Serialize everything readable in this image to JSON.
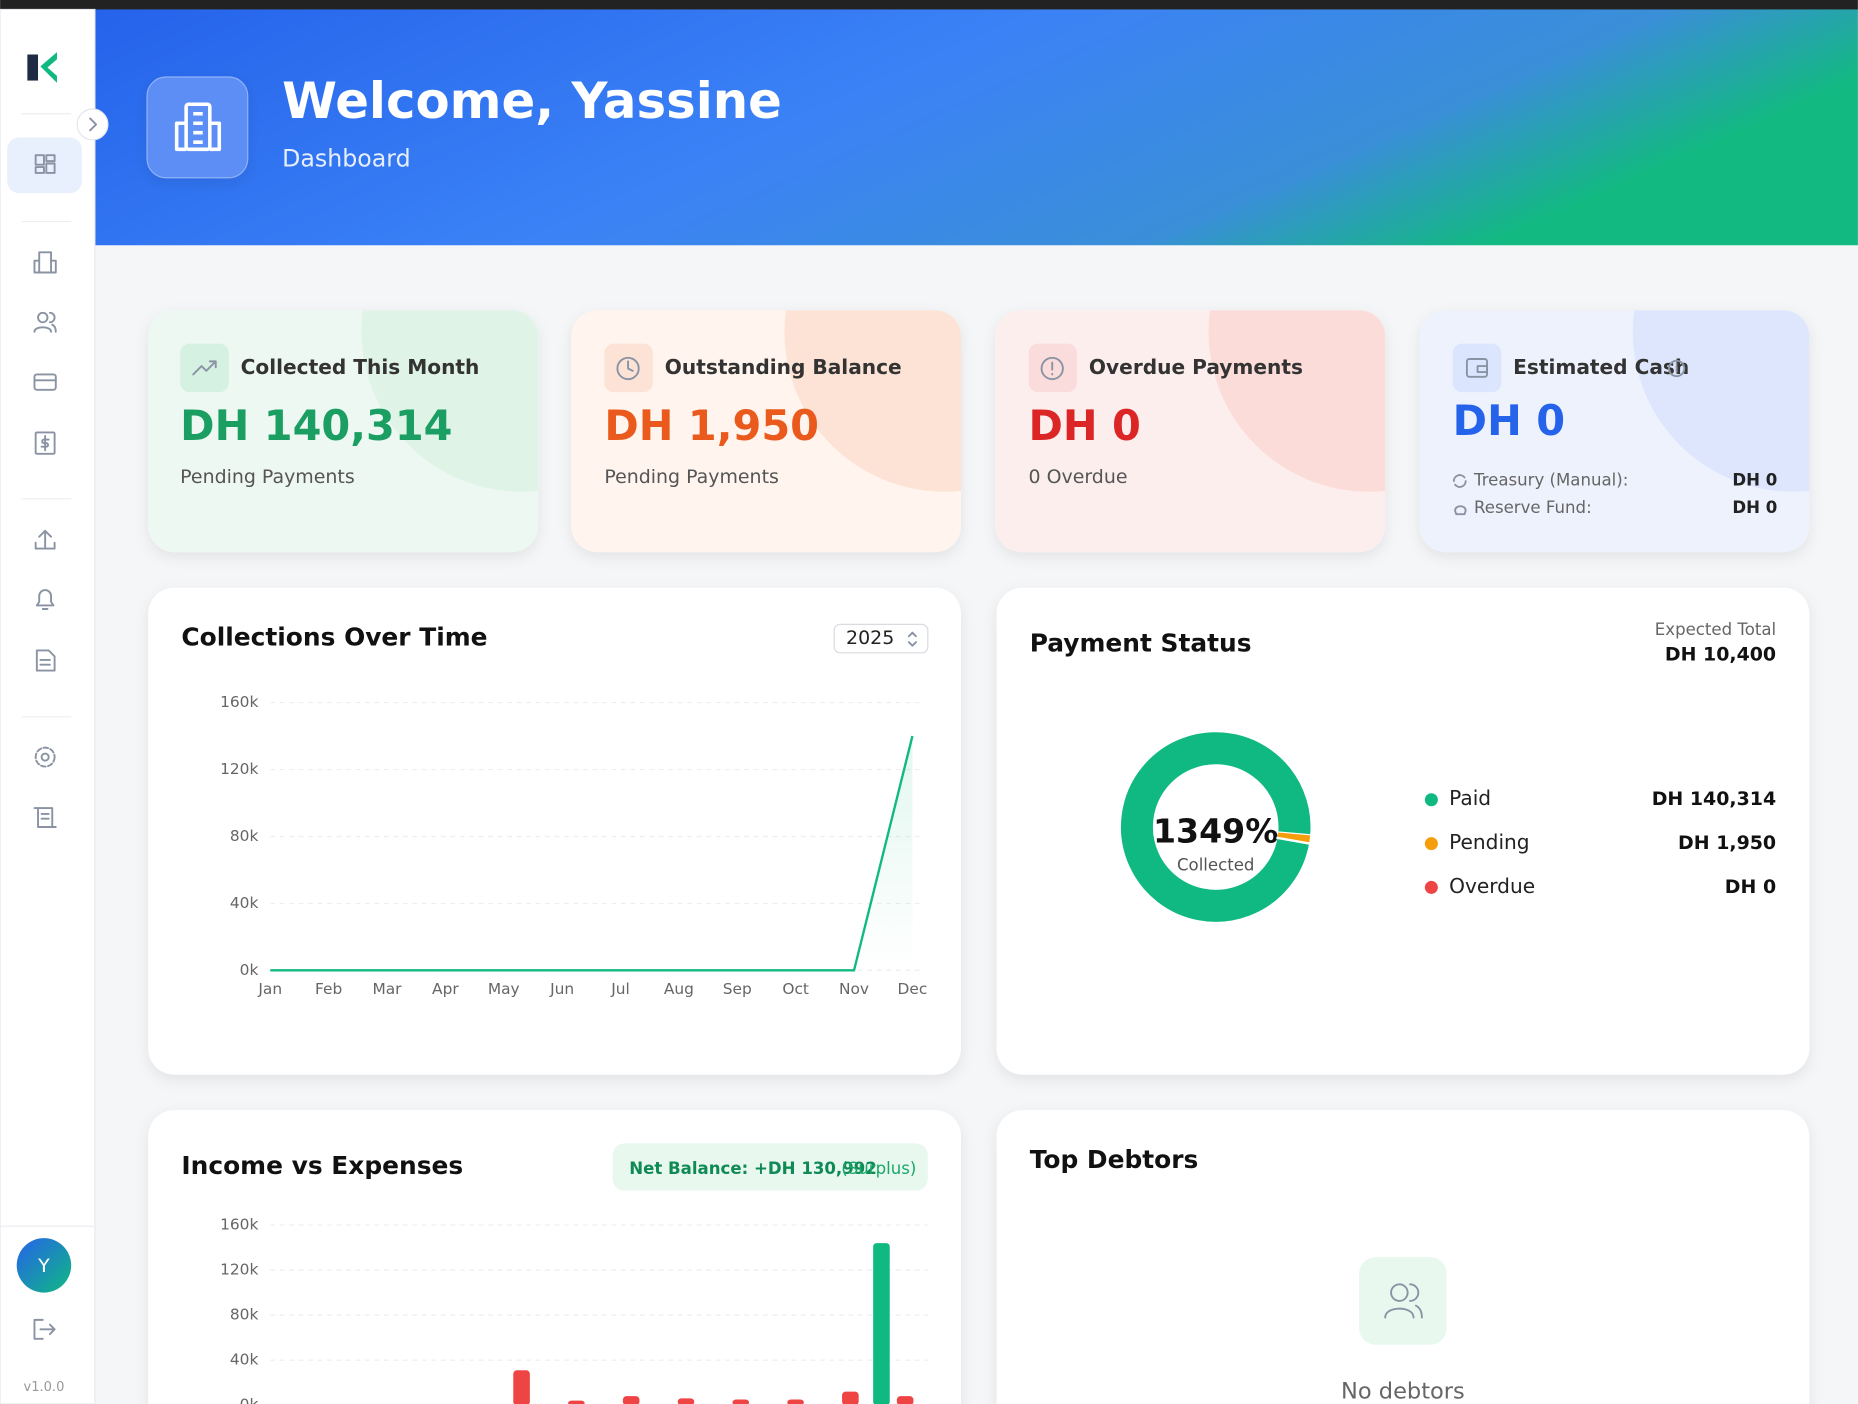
{
  "sidebar": {
    "avatar": "Y",
    "version": "v1.0.0"
  },
  "header": {
    "title": "Welcome, Yassine",
    "subtitle": "Dashboard"
  },
  "cards": [
    {
      "title": "Collected This Month",
      "value": "DH 140,314",
      "note": "Pending Payments"
    },
    {
      "title": "Outstanding Balance",
      "value": "DH 1,950",
      "note": "Pending Payments"
    },
    {
      "title": "Overdue Payments",
      "value": "DH 0",
      "note": "0 Overdue"
    },
    {
      "title": "Estimated Cash",
      "value": "DH 0",
      "rows": [
        {
          "label": "Treasury (Manual):",
          "value": "DH 0"
        },
        {
          "label": "Reserve Fund:",
          "value": "DH 0"
        }
      ]
    }
  ],
  "chart_data": [
    {
      "type": "line",
      "title": "Collections Over Time",
      "year": "2025",
      "categories": [
        "Jan",
        "Feb",
        "Mar",
        "Apr",
        "May",
        "Jun",
        "Jul",
        "Aug",
        "Sep",
        "Oct",
        "Nov",
        "Dec"
      ],
      "values": [
        0,
        0,
        0,
        0,
        0,
        0,
        0,
        0,
        0,
        0,
        0,
        140000
      ],
      "color": "#10b981",
      "ylim": [
        0,
        160000
      ],
      "yticks": [
        {
          "value": 0,
          "label": "0k"
        },
        {
          "value": 40000,
          "label": "40k"
        },
        {
          "value": 80000,
          "label": "80k"
        },
        {
          "value": 120000,
          "label": "120k"
        },
        {
          "value": 160000,
          "label": "160k"
        }
      ],
      "grid": true
    },
    {
      "type": "donut",
      "title": "Payment Status",
      "summary_label": "Expected Total",
      "summary_value": "DH 10,400",
      "center_value": "1349%",
      "center_label": "Collected",
      "categories": [
        "Paid",
        "Pending",
        "Overdue"
      ],
      "values": [
        140314,
        1950,
        0
      ],
      "value_labels": [
        "DH 140,314",
        "DH 1,950",
        "DH 0"
      ],
      "colors": [
        "#10b981",
        "#f59e0b",
        "#ef4444"
      ]
    },
    {
      "type": "bar",
      "title": "Income vs Expenses",
      "badge": "Net Balance: +DH 130,992",
      "badge_note": "(Surplus)",
      "series": [
        {
          "color": "#10b981",
          "values": [
            0,
            0,
            0,
            0,
            0,
            0,
            0,
            0,
            0,
            0,
            0,
            144000
          ]
        },
        {
          "color": "#ef4444",
          "values": [
            0,
            0,
            0,
            0,
            31000,
            4000,
            8000,
            6000,
            5000,
            5000,
            12000,
            8000
          ]
        }
      ],
      "ylim": [
        0,
        160000
      ],
      "yticks": [
        {
          "value": 0,
          "label": "0k"
        },
        {
          "value": 40000,
          "label": "40k"
        },
        {
          "value": 80000,
          "label": "80k"
        },
        {
          "value": 120000,
          "label": "120k"
        },
        {
          "value": 160000,
          "label": "160k"
        }
      ],
      "grid": true
    }
  ],
  "top_debtors": {
    "title": "Top Debtors",
    "empty": "No debtors"
  }
}
